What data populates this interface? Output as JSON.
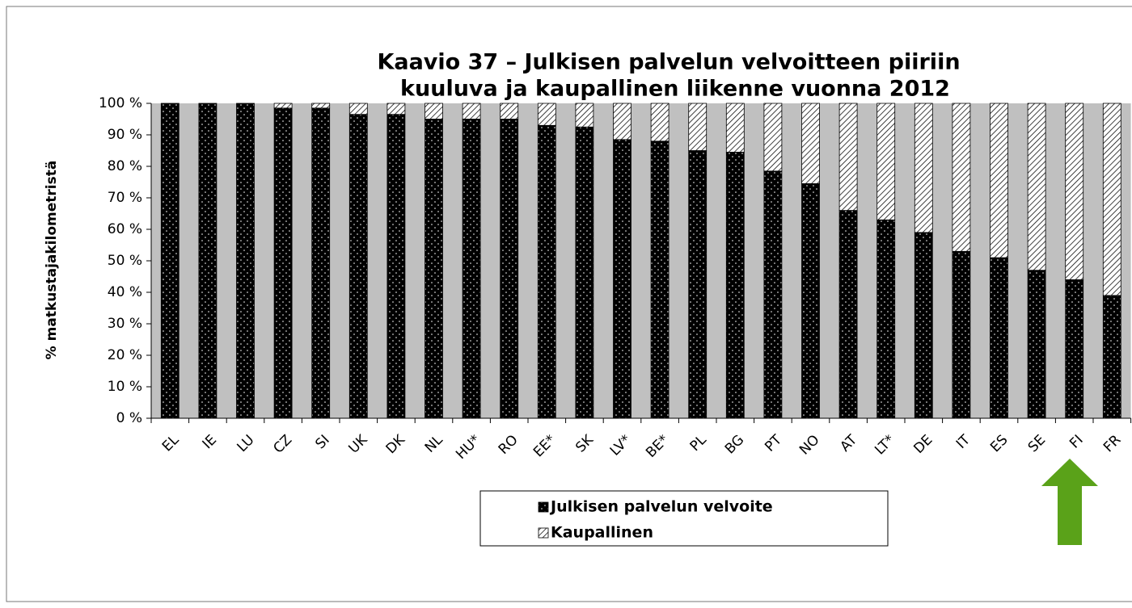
{
  "chart_data": {
    "type": "stacked_bar",
    "title_lines": [
      "Kaavio 37 – Julkisen palvelun velvoitteen piiriin",
      "kuuluva ja kaupallinen liikenne vuonna 2012"
    ],
    "y_label": "% matkustajakilometristä",
    "categories": [
      "EL",
      "IE",
      "LU",
      "CZ",
      "SI",
      "UK",
      "DK",
      "NL",
      "HU*",
      "RO",
      "EE*",
      "SK",
      "LV*",
      "BE*",
      "PL",
      "BG",
      "PT",
      "NO",
      "AT",
      "LT*",
      "DE",
      "IT",
      "ES",
      "SE",
      "FI",
      "FR"
    ],
    "series": [
      {
        "name": "Julkisen palvelun velvoite",
        "color": "#000000",
        "values": [
          100,
          100,
          100,
          98.5,
          98.5,
          96.5,
          96.5,
          95,
          95,
          95,
          93,
          92.5,
          88.5,
          88,
          85,
          84.5,
          78.5,
          74.5,
          66,
          63,
          59,
          53,
          51,
          47,
          44,
          39
        ]
      },
      {
        "name": "Kaupallinen",
        "color": "#ffffff",
        "values": [
          0,
          0,
          0,
          1.5,
          1.5,
          3.5,
          3.5,
          5,
          5,
          5,
          7,
          7.5,
          11.5,
          12,
          15,
          15.5,
          21.5,
          25.5,
          34,
          37,
          41,
          47,
          49,
          53,
          56,
          61
        ]
      }
    ],
    "ylim": [
      0,
      100
    ],
    "yticks": [
      {
        "value": 0,
        "label": "0 %"
      },
      {
        "value": 10,
        "label": "10 %"
      },
      {
        "value": 20,
        "label": "20 %"
      },
      {
        "value": 30,
        "label": "30 %"
      },
      {
        "value": 40,
        "label": "40 %"
      },
      {
        "value": 50,
        "label": "50 %"
      },
      {
        "value": 60,
        "label": "60 %"
      },
      {
        "value": 70,
        "label": "70 %"
      },
      {
        "value": 80,
        "label": "80 %"
      },
      {
        "value": 90,
        "label": "90 %"
      },
      {
        "value": 100,
        "label": "100 %"
      }
    ],
    "plot_background": "#c0c0c0"
  }
}
